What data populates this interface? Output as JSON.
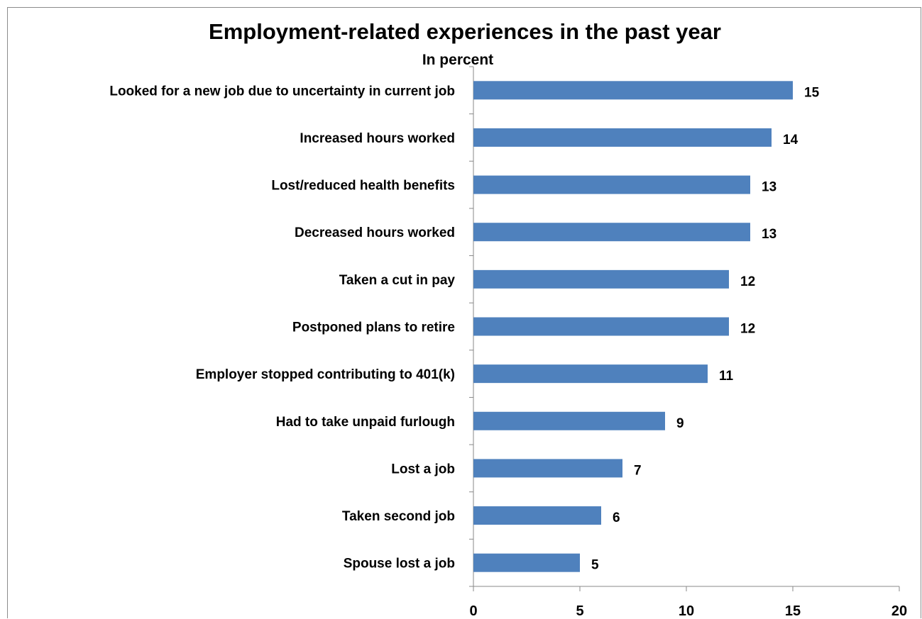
{
  "chart_data": {
    "type": "bar",
    "orientation": "horizontal",
    "title": "Employment-related experiences in the past year",
    "subtitle": "In percent",
    "categories": [
      "Looked for a new job due to uncertainty in current job",
      "Increased hours worked",
      "Lost/reduced health benefits",
      "Decreased hours worked",
      "Taken a cut in pay",
      "Postponed plans to retire",
      "Employer stopped contributing to 401(k)",
      "Had to take unpaid furlough",
      "Lost a job",
      "Taken second job",
      "Spouse lost a job"
    ],
    "values": [
      15,
      14,
      13,
      13,
      12,
      12,
      11,
      9,
      7,
      6,
      5
    ],
    "xlim": [
      0,
      20
    ],
    "xticks": [
      0,
      5,
      10,
      15,
      20
    ],
    "bar_color": "#4f81bd",
    "grid": false,
    "legend": "none",
    "data_labels": true
  }
}
